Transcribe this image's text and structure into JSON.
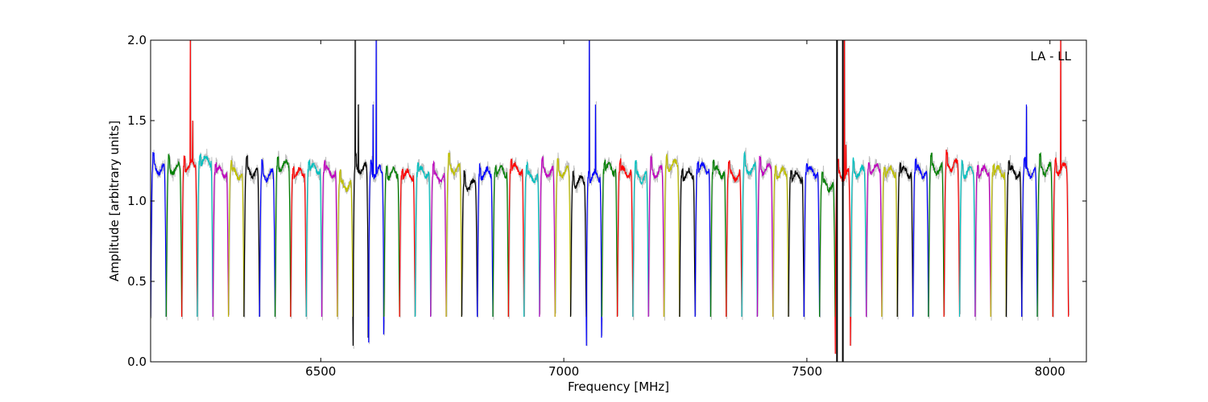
{
  "chart_data": {
    "type": "line",
    "title": "",
    "xlabel": "Frequency [MHz]",
    "ylabel": "Amplitude [arbitrary units]",
    "annotation": "LA - LL",
    "xlim": [
      6150,
      8075
    ],
    "ylim": [
      0.0,
      2.0
    ],
    "xticks": [
      6500,
      7000,
      7500,
      8000
    ],
    "xtick_labels": [
      "6500",
      "7000",
      "7500",
      "8000"
    ],
    "yticks": [
      0.0,
      0.5,
      1.0,
      1.5,
      2.0
    ],
    "ytick_labels": [
      "0.0",
      "0.5",
      "1.0",
      "1.5",
      "2.0"
    ],
    "grid": false,
    "colors": [
      "#0000ff",
      "#008000",
      "#ff0000",
      "#00bfbf",
      "#bf00bf",
      "#bfbf00",
      "#000000"
    ],
    "background_trace_color": "#c0c0c0",
    "spectral_windows": {
      "start_freq": 6150,
      "spacing_mhz": 32,
      "count": 59,
      "edge_minimum": 0.28,
      "plateau_levels": [
        1.2,
        1.2,
        1.22,
        1.25,
        1.18,
        1.17,
        1.18,
        1.16,
        1.22,
        1.17,
        1.2,
        1.18,
        1.1,
        1.2,
        1.18,
        1.17,
        1.16,
        1.18,
        1.15,
        1.2,
        1.1,
        1.17,
        1.18,
        1.2,
        1.15,
        1.18,
        1.18,
        1.12,
        1.15,
        1.2,
        1.18,
        1.15,
        1.18,
        1.22,
        1.16,
        1.2,
        1.18,
        1.16,
        1.2,
        1.2,
        1.17,
        1.15,
        1.18,
        1.1,
        1.16,
        1.18,
        1.2,
        1.18,
        1.18,
        1.18,
        1.2,
        1.22,
        1.18,
        1.18,
        1.18,
        1.18,
        1.18,
        1.2,
        1.2
      ]
    }
  }
}
